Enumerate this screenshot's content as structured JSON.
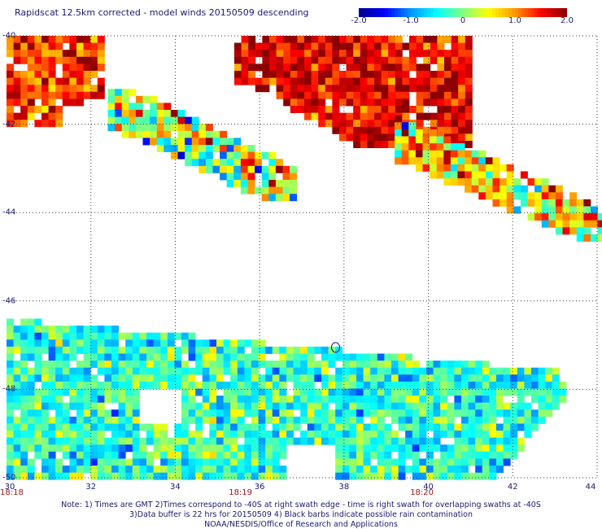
{
  "chart_data": {
    "type": "heatmap",
    "title": "Rapidscat 12.5km corrected - model winds 20150509 descending",
    "xlabel": "",
    "ylabel": "",
    "xlim": [
      30,
      44
    ],
    "ylim": [
      -50,
      -40
    ],
    "x_ticks": [
      "32",
      "34",
      "36",
      "38",
      "40",
      "42",
      "44"
    ],
    "x_origin_label": "30",
    "y_ticks": [
      "-40",
      "-42",
      "-44",
      "-46",
      "-48",
      "-50"
    ],
    "time_labels": [
      "18:18",
      "18:19",
      "18:20"
    ],
    "time_label_positions_lon": [
      30.0,
      35.5,
      39.8
    ],
    "colorbar": {
      "ticks": [
        "-2.0",
        "-1.0",
        "0",
        "1.0",
        "2.0"
      ],
      "range": [
        -2.0,
        2.0
      ],
      "colors": [
        "#00008b",
        "#0000ff",
        "#0096ff",
        "#00ffff",
        "#7fff7f",
        "#ffff00",
        "#ff9600",
        "#ff0000",
        "#8b0000"
      ]
    },
    "grid": true,
    "regions": [
      {
        "name": "swath-nw-corner",
        "lon": [
          30.0,
          32.2
        ],
        "lat_top": -40.0,
        "lat_bottom": -42.0,
        "mean_value": 1.4,
        "spread": 0.8
      },
      {
        "name": "strip-west",
        "lon": [
          32.4,
          36.8
        ],
        "lat_top": -41.2,
        "lat_bottom": -43.6,
        "mean_value": 0.2,
        "spread": 1.6
      },
      {
        "name": "swath-northeast",
        "lon": [
          35.4,
          41.0
        ],
        "lat_top": -40.0,
        "lat_bottom": -42.4,
        "mean_value": 1.6,
        "spread": 0.8
      },
      {
        "name": "strip-east",
        "lon": [
          39.2,
          44.2
        ],
        "lat_top": -41.8,
        "lat_bottom": -44.6,
        "mean_value": 0.6,
        "spread": 1.6
      },
      {
        "name": "south-swath",
        "lon": [
          30.0,
          43.4
        ],
        "lat_top": -46.4,
        "lat_bottom": -50.0,
        "mean_value": -0.3,
        "spread": 0.9
      }
    ]
  },
  "notes": {
    "line1": "Note: 1) Times are GMT 2)Times correspond to -40S at right swath edge - time is right swath for overlapping swaths at -40S",
    "line2": "3)Data buffer is 22 hrs for 20150509 4) Black barbs indicate possible rain contamination",
    "line3": "NOAA/NESDIS/Office of Research and Applications"
  }
}
